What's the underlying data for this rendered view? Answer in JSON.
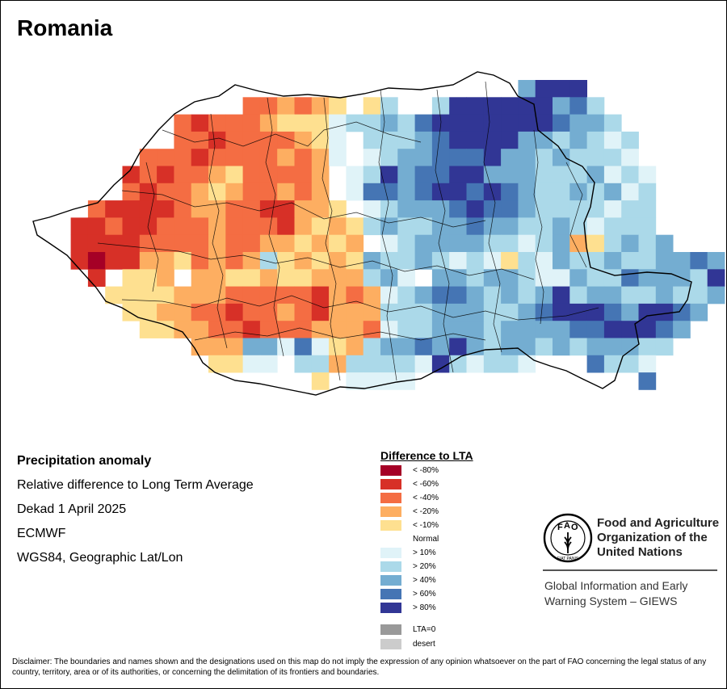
{
  "title": "Romania",
  "info": {
    "heading": "Precipitation anomaly",
    "line1": "Relative difference to Long Term Average",
    "line2": "Dekad 1 April 2025",
    "line3": "ECMWF",
    "line4": "WGS84, Geographic Lat/Lon"
  },
  "legend": {
    "title": "Difference to LTA",
    "items": [
      {
        "label": "< -80%",
        "color": "#a50026"
      },
      {
        "label": "< -60%",
        "color": "#d73027"
      },
      {
        "label": "< -40%",
        "color": "#f46d43"
      },
      {
        "label": "< -20%",
        "color": "#fdae61"
      },
      {
        "label": "< -10%",
        "color": "#fee090"
      },
      {
        "label": "Normal",
        "color": "#ffffff"
      },
      {
        "label": "> 10%",
        "color": "#e0f3f8"
      },
      {
        "label": "> 20%",
        "color": "#abd9e9"
      },
      {
        "label": "> 40%",
        "color": "#74add1"
      },
      {
        "label": "> 60%",
        "color": "#4575b4"
      },
      {
        "label": "> 80%",
        "color": "#313695"
      }
    ],
    "extra": [
      {
        "label": "LTA=0",
        "color": "#999999"
      },
      {
        "label": "desert",
        "color": "#cccccc"
      }
    ]
  },
  "fao": {
    "name_line1": "Food and Agriculture",
    "name_line2": "Organization of the",
    "name_line3": "United Nations",
    "logo_letters": "FAO",
    "logo_motto": "FIAT PANIS",
    "giews_line1": "Global Information and Early",
    "giews_line2": "Warning System – GIEWS"
  },
  "disclaimer": "Disclaimer: The boundaries and names shown and the designations used on this map do not imply the expression of any opinion whatsoever on the part of FAO concerning the legal status of any country, territory, area or of its authorities, or concerning the delimitation of its frontiers and boundaries.",
  "map_grid": [
    "....................#######.................",
    "................##....#########.............",
    "...........######...##################......",
    ".........############################.......",
    "........##############################......",
    ".......###############################......",
    "......#################################.....",
    "....###################################.....",
    "...####################################.....",
    "..######################################....",
    "..#######################################...",
    "...#######################################..",
    "....######################################..",
    ".....###########################.....#####..",
    "......##########################......####..",
    ".........#####################..............",
    "..........######..............................",
    "..........................................",
    "..........................................",
    ".........................................."
  ]
}
